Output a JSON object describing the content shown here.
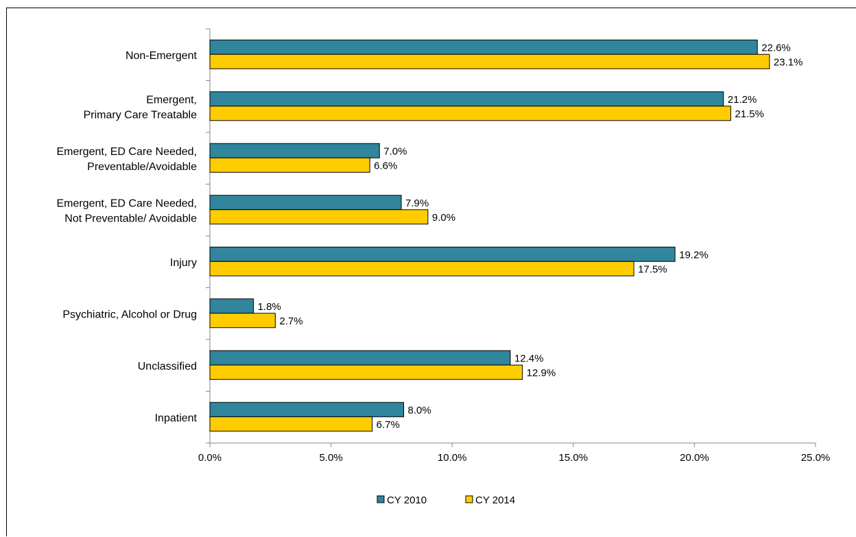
{
  "title_fragment": "",
  "colors": {
    "cy2010": "#31859C",
    "cy2014": "#FFCC00",
    "outline": "#000000",
    "axis": "#868686"
  },
  "chart_data": {
    "type": "bar",
    "orientation": "horizontal",
    "categories": [
      [
        "Non-Emergent"
      ],
      [
        "Emergent,",
        "Primary Care Treatable"
      ],
      [
        "Emergent, ED Care Needed,",
        "Preventable/Avoidable"
      ],
      [
        "Emergent, ED Care Needed,",
        "Not Preventable/ Avoidable"
      ],
      [
        "Injury"
      ],
      [
        "Psychiatric, Alcohol or Drug"
      ],
      [
        "Unclassified"
      ],
      [
        "Inpatient"
      ]
    ],
    "series": [
      {
        "name": "CY 2010",
        "values": [
          22.6,
          21.2,
          7.0,
          7.9,
          19.2,
          1.8,
          12.4,
          8.0
        ],
        "labels": [
          "22.6%",
          "21.2%",
          "7.0%",
          "7.9%",
          "19.2%",
          "1.8%",
          "12.4%",
          "8.0%"
        ]
      },
      {
        "name": "CY 2014",
        "values": [
          23.1,
          21.5,
          6.6,
          9.0,
          17.5,
          2.7,
          12.9,
          6.7
        ],
        "labels": [
          "23.1%",
          "21.5%",
          "6.6%",
          "9.0%",
          "17.5%",
          "2.7%",
          "12.9%",
          "6.7%"
        ]
      }
    ],
    "xlim": [
      0,
      25
    ],
    "xticks": [
      0,
      5,
      10,
      15,
      20,
      25
    ],
    "xtick_labels": [
      "0.0%",
      "5.0%",
      "10.0%",
      "15.0%",
      "20.0%",
      "25.0%"
    ],
    "grid": false,
    "legend_position": "bottom"
  }
}
